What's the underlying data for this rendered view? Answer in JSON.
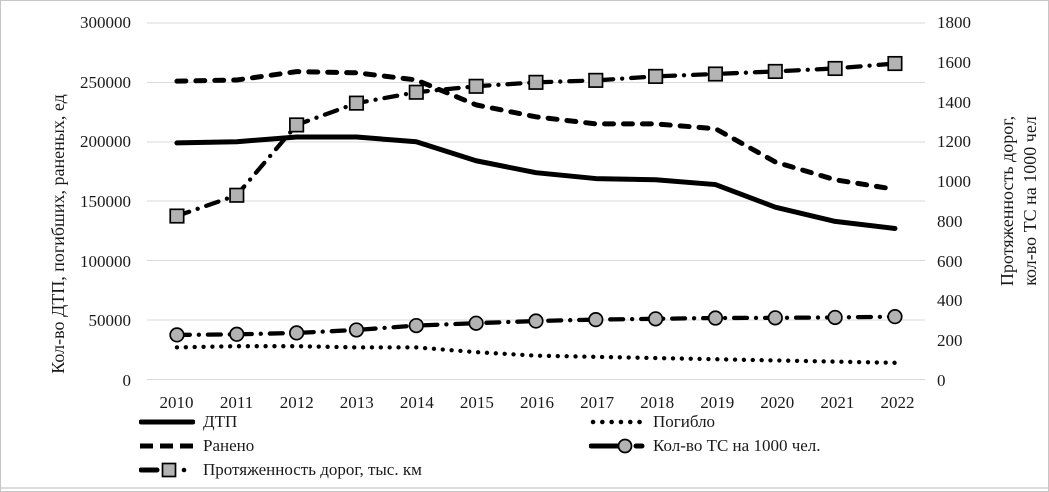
{
  "window": {
    "border_color": "#c6c6c6",
    "bottom_edge_color": "#dcdcdc",
    "background": "#ffffff"
  },
  "chart_data": {
    "type": "line",
    "title": "",
    "categories": [
      "2010",
      "2011",
      "2012",
      "2013",
      "2014",
      "2015",
      "2016",
      "2017",
      "2018",
      "2019",
      "2020",
      "2021",
      "2022"
    ],
    "axes": {
      "left": {
        "label": "Кол-во ДТП, погибших, раненых, ед",
        "min": 0,
        "max": 300000,
        "tick_labels": [
          "0",
          "50000",
          "100000",
          "150000",
          "200000",
          "250000",
          "300000"
        ]
      },
      "right": {
        "label_lines": [
          "Протяженность дорог,",
          "кол-во ТС на 1000 чел"
        ],
        "min": 0,
        "max": 1800,
        "tick_labels": [
          "0",
          "200",
          "400",
          "600",
          "800",
          "1000",
          "1200",
          "1400",
          "1600",
          "1800"
        ]
      }
    },
    "grid": {
      "horizontal": true,
      "color": "#d9d9d9"
    },
    "legend_position": "bottom",
    "series": [
      {
        "key": "dtp",
        "name": "ДТП",
        "axis": "left",
        "line": "solid",
        "marker": "none",
        "color": "#000000",
        "values": [
          199000,
          200000,
          204000,
          204000,
          200000,
          184000,
          174000,
          169000,
          168000,
          164000,
          145000,
          133000,
          127000
        ]
      },
      {
        "key": "pogiblo",
        "name": "Погибло",
        "axis": "left",
        "line": "dotted",
        "marker": "none",
        "color": "#000000",
        "values": [
          27000,
          28000,
          28000,
          27000,
          27000,
          23000,
          20000,
          19000,
          18000,
          17000,
          16000,
          15000,
          14000
        ]
      },
      {
        "key": "raneno",
        "name": "Ранено",
        "axis": "left",
        "line": "dashed",
        "marker": "none",
        "color": "#000000",
        "values": [
          251000,
          252000,
          259000,
          258000,
          252000,
          231000,
          221000,
          215000,
          215000,
          211000,
          183000,
          168000,
          160000
        ]
      },
      {
        "key": "ts-na-1000-chel",
        "name": "Кол-во ТС на 1000 чел.",
        "axis": "right",
        "line": "dashdot",
        "marker": "circle",
        "marker_fill": "#b3b3b3",
        "color": "#000000",
        "values": [
          225,
          228,
          235,
          250,
          272,
          284,
          295,
          302,
          306,
          310,
          311,
          313,
          317
        ]
      },
      {
        "key": "protyazhennost-dorog",
        "name": "Протяженность дорог, тыс. км",
        "axis": "right",
        "line": "dashdot",
        "marker": "square",
        "marker_fill": "#b3b3b3",
        "color": "#000000",
        "values": [
          825,
          930,
          1285,
          1395,
          1450,
          1480,
          1500,
          1510,
          1530,
          1542,
          1555,
          1570,
          1595
        ]
      }
    ]
  }
}
